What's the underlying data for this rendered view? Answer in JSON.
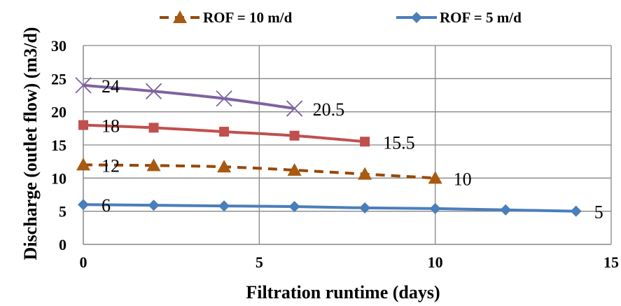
{
  "chart_data": {
    "type": "line",
    "xlabel": "Filtration runtime (days)",
    "ylabel": "Discharge (outlet flow) (m3/d)",
    "xlim": [
      0,
      15
    ],
    "ylim": [
      0,
      30
    ],
    "x_ticks": [
      "0",
      "5",
      "10",
      "15"
    ],
    "y_ticks": [
      "0",
      "5",
      "10",
      "15",
      "20",
      "25",
      "30"
    ],
    "grid": true,
    "legend_position": "top",
    "series": [
      {
        "name": "ROF = 5 m/d",
        "color": "#4a7ebb",
        "marker": "diamond",
        "dash": "solid",
        "x": [
          0,
          2,
          4,
          6,
          8,
          10,
          12,
          14
        ],
        "values": [
          6,
          5.9,
          5.8,
          5.7,
          5.5,
          5.4,
          5.2,
          5
        ],
        "labels": [
          {
            "index": 0,
            "text": "6"
          },
          {
            "index": 7,
            "text": "5"
          }
        ]
      },
      {
        "name": "ROF = 10 m/d",
        "color": "#984807",
        "marker_color": "#a85a10",
        "marker": "triangle",
        "dash": "dashed",
        "x": [
          0,
          2,
          4,
          6,
          8,
          10
        ],
        "values": [
          12,
          11.9,
          11.7,
          11.2,
          10.6,
          10
        ],
        "labels": [
          {
            "index": 0,
            "text": "12"
          },
          {
            "index": 5,
            "text": "10"
          }
        ]
      },
      {
        "color": "#c0504d",
        "marker": "square",
        "dash": "solid",
        "x": [
          0,
          2,
          4,
          6,
          8
        ],
        "values": [
          18,
          17.6,
          17,
          16.4,
          15.5
        ],
        "labels": [
          {
            "index": 0,
            "text": "18"
          },
          {
            "index": 4,
            "text": "15.5"
          }
        ]
      },
      {
        "color": "#7f62a0",
        "marker": "x",
        "dash": "solid",
        "x": [
          0,
          2,
          4,
          6
        ],
        "values": [
          24,
          23.1,
          22,
          20.5
        ],
        "labels": [
          {
            "index": 0,
            "text": "24"
          },
          {
            "index": 3,
            "text": "20.5"
          }
        ]
      }
    ]
  }
}
